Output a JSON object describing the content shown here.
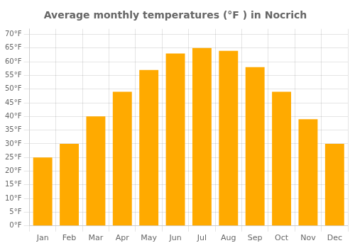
{
  "chart_data": {
    "type": "bar",
    "title": "Average monthly temperatures (°F ) in Nocrich",
    "categories": [
      "Jan",
      "Feb",
      "Mar",
      "Apr",
      "May",
      "Jun",
      "Jul",
      "Aug",
      "Sep",
      "Oct",
      "Nov",
      "Dec"
    ],
    "values": [
      25,
      30,
      40,
      49,
      57,
      63,
      65,
      64,
      58,
      49,
      39,
      30
    ],
    "color": "#FFAA00",
    "ylim": [
      0,
      72
    ],
    "yticks": [
      {
        "value": 0,
        "label": "0°F"
      },
      {
        "value": 5,
        "label": "5°F"
      },
      {
        "value": 10,
        "label": "10°F"
      },
      {
        "value": 15,
        "label": "15°F"
      },
      {
        "value": 20,
        "label": "20°F"
      },
      {
        "value": 25,
        "label": "25°F"
      },
      {
        "value": 30,
        "label": "30°F"
      },
      {
        "value": 35,
        "label": "35°F"
      },
      {
        "value": 40,
        "label": "40°F"
      },
      {
        "value": 45,
        "label": "45°F"
      },
      {
        "value": 50,
        "label": "50°F"
      },
      {
        "value": 55,
        "label": "55°F"
      },
      {
        "value": 60,
        "label": "60°F"
      },
      {
        "value": 65,
        "label": "65°F"
      },
      {
        "value": 70,
        "label": "70°F"
      }
    ],
    "grid": true
  }
}
